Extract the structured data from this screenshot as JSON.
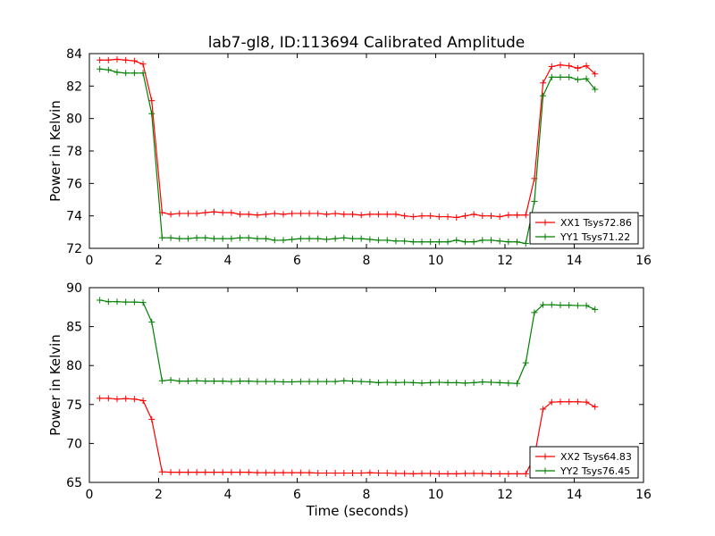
{
  "title": "lab7-gl8, ID:113694 Calibrated Amplitude",
  "chart_data": [
    {
      "type": "line",
      "title": "lab7-gl8, ID:113694 Calibrated Amplitude",
      "xlabel": "",
      "ylabel": "Power in Kelvin",
      "xlim": [
        0,
        16
      ],
      "ylim": [
        72,
        84
      ],
      "xticks": [
        0,
        2,
        4,
        6,
        8,
        10,
        12,
        14,
        16
      ],
      "yticks": [
        72,
        74,
        76,
        78,
        80,
        82,
        84
      ],
      "grid": false,
      "legend_position": "lower-right",
      "x": [
        0.3,
        0.55,
        0.8,
        1.05,
        1.3,
        1.55,
        1.8,
        2.1,
        2.35,
        2.6,
        2.85,
        3.1,
        3.35,
        3.6,
        3.85,
        4.1,
        4.35,
        4.6,
        4.85,
        5.1,
        5.35,
        5.6,
        5.85,
        6.1,
        6.35,
        6.6,
        6.85,
        7.1,
        7.35,
        7.6,
        7.85,
        8.1,
        8.35,
        8.6,
        8.85,
        9.1,
        9.35,
        9.6,
        9.85,
        10.1,
        10.35,
        10.6,
        10.85,
        11.1,
        11.35,
        11.6,
        11.85,
        12.1,
        12.35,
        12.6,
        12.85,
        13.1,
        13.35,
        13.6,
        13.85,
        14.1,
        14.35,
        14.6
      ],
      "series": [
        {
          "name": "XX1 Tsys72.86",
          "color": "#ff0000",
          "values": [
            83.6,
            83.6,
            83.65,
            83.6,
            83.55,
            83.35,
            81.1,
            74.2,
            74.1,
            74.15,
            74.15,
            74.15,
            74.2,
            74.25,
            74.2,
            74.2,
            74.1,
            74.1,
            74.05,
            74.1,
            74.15,
            74.1,
            74.15,
            74.15,
            74.15,
            74.15,
            74.1,
            74.15,
            74.1,
            74.1,
            74.05,
            74.1,
            74.1,
            74.1,
            74.1,
            74.0,
            73.95,
            74.0,
            74.0,
            73.95,
            73.95,
            73.9,
            74.0,
            74.1,
            74.0,
            74.0,
            73.95,
            74.05,
            74.05,
            74.05,
            76.3,
            82.2,
            83.2,
            83.3,
            83.25,
            83.1,
            83.25,
            82.75
          ]
        },
        {
          "name": "YY1 Tsys71.22",
          "color": "#008000",
          "values": [
            83.05,
            83.0,
            82.85,
            82.8,
            82.8,
            82.8,
            80.3,
            72.65,
            72.65,
            72.6,
            72.6,
            72.65,
            72.65,
            72.6,
            72.6,
            72.6,
            72.65,
            72.65,
            72.6,
            72.6,
            72.5,
            72.5,
            72.55,
            72.6,
            72.6,
            72.6,
            72.55,
            72.6,
            72.65,
            72.6,
            72.6,
            72.55,
            72.5,
            72.5,
            72.45,
            72.45,
            72.4,
            72.4,
            72.4,
            72.4,
            72.4,
            72.5,
            72.4,
            72.4,
            72.5,
            72.5,
            72.45,
            72.4,
            72.4,
            72.3,
            74.9,
            81.4,
            82.55,
            82.55,
            82.55,
            82.4,
            82.45,
            81.8
          ]
        }
      ]
    },
    {
      "type": "line",
      "title": "",
      "xlabel": "Time (seconds)",
      "ylabel": "Power in Kelvin",
      "xlim": [
        0,
        16
      ],
      "ylim": [
        65,
        90
      ],
      "xticks": [
        0,
        2,
        4,
        6,
        8,
        10,
        12,
        14,
        16
      ],
      "yticks": [
        65,
        70,
        75,
        80,
        85,
        90
      ],
      "grid": false,
      "legend_position": "lower-right",
      "x": [
        0.3,
        0.55,
        0.8,
        1.05,
        1.3,
        1.55,
        1.8,
        2.1,
        2.35,
        2.6,
        2.85,
        3.1,
        3.35,
        3.6,
        3.85,
        4.1,
        4.35,
        4.6,
        4.85,
        5.1,
        5.35,
        5.6,
        5.85,
        6.1,
        6.35,
        6.6,
        6.85,
        7.1,
        7.35,
        7.6,
        7.85,
        8.1,
        8.35,
        8.6,
        8.85,
        9.1,
        9.35,
        9.6,
        9.85,
        10.1,
        10.35,
        10.6,
        10.85,
        11.1,
        11.35,
        11.6,
        11.85,
        12.1,
        12.35,
        12.6,
        12.85,
        13.1,
        13.35,
        13.6,
        13.85,
        14.1,
        14.35,
        14.6
      ],
      "series": [
        {
          "name": "XX2 Tsys64.83",
          "color": "#ff0000",
          "values": [
            75.8,
            75.8,
            75.7,
            75.75,
            75.7,
            75.5,
            73.1,
            66.35,
            66.3,
            66.3,
            66.3,
            66.3,
            66.3,
            66.3,
            66.3,
            66.3,
            66.3,
            66.3,
            66.25,
            66.25,
            66.25,
            66.25,
            66.25,
            66.25,
            66.25,
            66.2,
            66.2,
            66.2,
            66.2,
            66.2,
            66.2,
            66.25,
            66.2,
            66.2,
            66.15,
            66.15,
            66.1,
            66.15,
            66.15,
            66.1,
            66.1,
            66.1,
            66.15,
            66.15,
            66.15,
            66.1,
            66.1,
            66.1,
            66.1,
            66.1,
            68.3,
            74.4,
            75.3,
            75.35,
            75.35,
            75.35,
            75.3,
            74.7
          ]
        },
        {
          "name": "YY2 Tsys76.45",
          "color": "#008000",
          "values": [
            88.4,
            88.2,
            88.2,
            88.15,
            88.15,
            88.1,
            85.6,
            78.05,
            78.15,
            78.0,
            78.0,
            78.05,
            78.0,
            78.0,
            78.0,
            77.95,
            78.0,
            78.0,
            77.95,
            77.95,
            77.95,
            77.9,
            77.9,
            77.95,
            77.95,
            77.95,
            77.95,
            77.95,
            78.05,
            78.0,
            77.95,
            77.9,
            77.8,
            77.85,
            77.8,
            77.85,
            77.8,
            77.75,
            77.8,
            77.85,
            77.8,
            77.8,
            77.75,
            77.8,
            77.9,
            77.85,
            77.8,
            77.75,
            77.7,
            80.35,
            86.8,
            87.8,
            87.8,
            87.75,
            87.75,
            87.7,
            87.7,
            87.2
          ]
        }
      ]
    }
  ]
}
